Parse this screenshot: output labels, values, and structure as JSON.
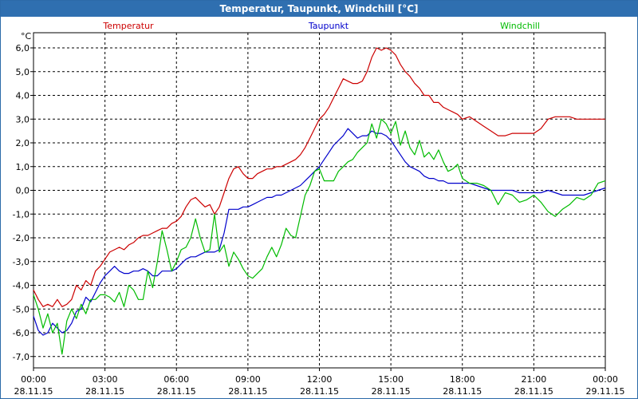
{
  "chart_data": {
    "type": "line",
    "title": "Temperatur, Taupunkt, Windchill [°C]",
    "ylabel": "°C",
    "ylim": [
      -7.5,
      6.5
    ],
    "yticks": [
      "6,0",
      "5,0",
      "4,0",
      "3,0",
      "2,0",
      "1,0",
      "0,0",
      "-1,0",
      "-2,0",
      "-3,0",
      "-4,0",
      "-5,0",
      "-6,0",
      "-7,0"
    ],
    "ytick_values": [
      6,
      5,
      4,
      3,
      2,
      1,
      0,
      -1,
      -2,
      -3,
      -4,
      -5,
      -6,
      -7
    ],
    "xlim": [
      0,
      24
    ],
    "xticks": [
      {
        "time": "00:00",
        "date": "28.11.15",
        "hour": 0
      },
      {
        "time": "03:00",
        "date": "28.11.15",
        "hour": 3
      },
      {
        "time": "06:00",
        "date": "28.11.15",
        "hour": 6
      },
      {
        "time": "09:00",
        "date": "28.11.15",
        "hour": 9
      },
      {
        "time": "12:00",
        "date": "28.11.15",
        "hour": 12
      },
      {
        "time": "15:00",
        "date": "28.11.15",
        "hour": 15
      },
      {
        "time": "18:00",
        "date": "28.11.15",
        "hour": 18
      },
      {
        "time": "21:00",
        "date": "28.11.15",
        "hour": 21
      },
      {
        "time": "00:00",
        "date": "29.11.15",
        "hour": 24
      }
    ],
    "grid": true,
    "series": [
      {
        "name": "Temperatur",
        "color": "#cc0000",
        "x": [
          0,
          0.2,
          0.4,
          0.6,
          0.8,
          1.0,
          1.2,
          1.4,
          1.6,
          1.8,
          2.0,
          2.2,
          2.4,
          2.6,
          2.8,
          3.0,
          3.2,
          3.4,
          3.6,
          3.8,
          4.0,
          4.2,
          4.4,
          4.6,
          4.8,
          5.0,
          5.2,
          5.4,
          5.6,
          5.8,
          6.0,
          6.2,
          6.4,
          6.6,
          6.8,
          7.0,
          7.2,
          7.4,
          7.6,
          7.8,
          8.0,
          8.2,
          8.4,
          8.6,
          8.8,
          9.0,
          9.2,
          9.4,
          9.6,
          9.8,
          10.0,
          10.2,
          10.4,
          10.6,
          10.8,
          11.0,
          11.2,
          11.4,
          11.6,
          11.8,
          12.0,
          12.2,
          12.4,
          12.6,
          12.8,
          13.0,
          13.2,
          13.4,
          13.6,
          13.8,
          14.0,
          14.2,
          14.4,
          14.6,
          14.8,
          15.0,
          15.2,
          15.4,
          15.6,
          15.8,
          16.0,
          16.2,
          16.4,
          16.6,
          16.8,
          17.0,
          17.2,
          17.4,
          17.6,
          17.8,
          18.0,
          18.3,
          18.6,
          18.9,
          19.2,
          19.5,
          19.8,
          20.1,
          20.4,
          20.7,
          21.0,
          21.3,
          21.6,
          21.9,
          22.2,
          22.5,
          22.8,
          23.1,
          23.4,
          23.7,
          24.0
        ],
        "values": [
          -4.2,
          -4.6,
          -4.9,
          -4.8,
          -4.9,
          -4.6,
          -4.9,
          -4.8,
          -4.6,
          -4.0,
          -4.2,
          -3.8,
          -4.0,
          -3.4,
          -3.2,
          -2.9,
          -2.6,
          -2.5,
          -2.4,
          -2.5,
          -2.3,
          -2.2,
          -2.0,
          -1.9,
          -1.9,
          -1.8,
          -1.7,
          -1.6,
          -1.6,
          -1.4,
          -1.3,
          -1.1,
          -0.7,
          -0.4,
          -0.3,
          -0.5,
          -0.7,
          -0.6,
          -1.0,
          -0.7,
          -0.1,
          0.5,
          0.9,
          1.0,
          0.7,
          0.5,
          0.5,
          0.7,
          0.8,
          0.9,
          0.9,
          1.0,
          1.0,
          1.1,
          1.2,
          1.3,
          1.5,
          1.8,
          2.2,
          2.6,
          3.0,
          3.2,
          3.5,
          3.9,
          4.3,
          4.7,
          4.6,
          4.5,
          4.5,
          4.6,
          5.0,
          5.6,
          6.0,
          5.9,
          6.0,
          5.9,
          5.7,
          5.3,
          5.0,
          4.8,
          4.5,
          4.3,
          4.0,
          4.0,
          3.7,
          3.7,
          3.5,
          3.4,
          3.3,
          3.2,
          3.0,
          3.1,
          2.9,
          2.7,
          2.5,
          2.3,
          2.3,
          2.4,
          2.4,
          2.4,
          2.4,
          2.6,
          3.0,
          3.1,
          3.1,
          3.1,
          3.0,
          3.0,
          3.0,
          3.0,
          3.0
        ]
      },
      {
        "name": "Taupunkt",
        "color": "#0000cc",
        "x": [
          0,
          0.2,
          0.4,
          0.6,
          0.8,
          1.0,
          1.2,
          1.4,
          1.6,
          1.8,
          2.0,
          2.2,
          2.4,
          2.6,
          2.8,
          3.0,
          3.2,
          3.4,
          3.6,
          3.8,
          4.0,
          4.2,
          4.4,
          4.6,
          4.8,
          5.0,
          5.2,
          5.4,
          5.6,
          5.8,
          6.0,
          6.2,
          6.4,
          6.6,
          6.8,
          7.0,
          7.2,
          7.4,
          7.6,
          7.8,
          8.0,
          8.2,
          8.4,
          8.6,
          8.8,
          9.0,
          9.2,
          9.4,
          9.6,
          9.8,
          10.0,
          10.2,
          10.4,
          10.6,
          10.8,
          11.0,
          11.2,
          11.4,
          11.6,
          11.8,
          12.0,
          12.2,
          12.4,
          12.6,
          12.8,
          13.0,
          13.2,
          13.4,
          13.6,
          13.8,
          14.0,
          14.2,
          14.4,
          14.6,
          14.8,
          15.0,
          15.2,
          15.4,
          15.6,
          15.8,
          16.0,
          16.2,
          16.4,
          16.6,
          16.8,
          17.0,
          17.2,
          17.4,
          17.6,
          17.8,
          18.0,
          18.3,
          18.6,
          18.9,
          19.2,
          19.5,
          19.8,
          20.1,
          20.4,
          20.7,
          21.0,
          21.3,
          21.6,
          21.9,
          22.2,
          22.5,
          22.8,
          23.1,
          23.4,
          23.7,
          24.0
        ],
        "values": [
          -5.3,
          -5.9,
          -6.1,
          -6.0,
          -5.6,
          -5.8,
          -6.0,
          -5.9,
          -5.6,
          -5.1,
          -5.0,
          -4.5,
          -4.7,
          -4.3,
          -3.9,
          -3.6,
          -3.4,
          -3.2,
          -3.4,
          -3.5,
          -3.5,
          -3.4,
          -3.4,
          -3.3,
          -3.4,
          -3.6,
          -3.6,
          -3.4,
          -3.4,
          -3.4,
          -3.3,
          -3.1,
          -2.9,
          -2.8,
          -2.8,
          -2.7,
          -2.6,
          -2.6,
          -2.6,
          -2.5,
          -1.8,
          -0.8,
          -0.8,
          -0.8,
          -0.7,
          -0.7,
          -0.6,
          -0.5,
          -0.4,
          -0.3,
          -0.3,
          -0.2,
          -0.2,
          -0.1,
          0.0,
          0.1,
          0.2,
          0.4,
          0.6,
          0.8,
          1.0,
          1.3,
          1.6,
          1.9,
          2.1,
          2.3,
          2.6,
          2.4,
          2.2,
          2.3,
          2.3,
          2.5,
          2.4,
          2.4,
          2.3,
          2.1,
          1.8,
          1.5,
          1.2,
          1.0,
          0.9,
          0.8,
          0.6,
          0.5,
          0.5,
          0.4,
          0.4,
          0.3,
          0.3,
          0.3,
          0.3,
          0.3,
          0.2,
          0.1,
          0.0,
          0.0,
          0.0,
          0.0,
          -0.1,
          -0.1,
          -0.1,
          -0.1,
          0.0,
          -0.1,
          -0.2,
          -0.2,
          -0.2,
          -0.2,
          -0.1,
          0.0,
          0.1
        ]
      },
      {
        "name": "Windchill",
        "color": "#00bb00",
        "x": [
          0,
          0.2,
          0.4,
          0.6,
          0.8,
          1.0,
          1.2,
          1.4,
          1.6,
          1.8,
          2.0,
          2.2,
          2.4,
          2.6,
          2.8,
          3.0,
          3.2,
          3.4,
          3.6,
          3.8,
          4.0,
          4.2,
          4.4,
          4.6,
          4.8,
          5.0,
          5.2,
          5.4,
          5.6,
          5.8,
          6.0,
          6.2,
          6.4,
          6.6,
          6.8,
          7.0,
          7.2,
          7.4,
          7.6,
          7.8,
          8.0,
          8.2,
          8.4,
          8.6,
          8.8,
          9.0,
          9.2,
          9.4,
          9.6,
          9.8,
          10.0,
          10.2,
          10.4,
          10.6,
          10.8,
          11.0,
          11.2,
          11.4,
          11.6,
          11.8,
          12.0,
          12.2,
          12.4,
          12.6,
          12.8,
          13.0,
          13.2,
          13.4,
          13.6,
          13.8,
          14.0,
          14.2,
          14.4,
          14.6,
          14.8,
          15.0,
          15.2,
          15.4,
          15.6,
          15.8,
          16.0,
          16.2,
          16.4,
          16.6,
          16.8,
          17.0,
          17.2,
          17.4,
          17.6,
          17.8,
          18.0,
          18.3,
          18.6,
          18.9,
          19.2,
          19.5,
          19.8,
          20.1,
          20.4,
          20.7,
          21.0,
          21.3,
          21.6,
          21.9,
          22.2,
          22.5,
          22.8,
          23.1,
          23.4,
          23.7,
          24.0
        ],
        "values": [
          -4.4,
          -5.0,
          -5.8,
          -5.2,
          -6.0,
          -5.6,
          -6.9,
          -5.5,
          -5.0,
          -5.4,
          -4.8,
          -5.2,
          -4.6,
          -4.6,
          -4.4,
          -4.4,
          -4.5,
          -4.7,
          -4.3,
          -4.9,
          -4.0,
          -4.2,
          -4.6,
          -4.6,
          -3.4,
          -4.1,
          -3.0,
          -1.7,
          -2.5,
          -3.4,
          -3.0,
          -2.5,
          -2.4,
          -2.0,
          -1.2,
          -2.0,
          -2.6,
          -2.5,
          -1.0,
          -2.6,
          -2.3,
          -3.2,
          -2.6,
          -2.9,
          -3.3,
          -3.6,
          -3.7,
          -3.5,
          -3.3,
          -2.8,
          -2.4,
          -2.8,
          -2.3,
          -1.6,
          -1.9,
          -2.0,
          -1.1,
          -0.2,
          0.2,
          0.8,
          0.9,
          0.4,
          0.4,
          0.4,
          0.8,
          1.0,
          1.2,
          1.3,
          1.6,
          1.8,
          2.0,
          2.8,
          2.2,
          3.0,
          2.8,
          2.4,
          2.9,
          1.9,
          2.5,
          1.8,
          1.5,
          2.1,
          1.4,
          1.6,
          1.3,
          1.7,
          1.2,
          0.8,
          0.9,
          1.1,
          0.5,
          0.3,
          0.3,
          0.2,
          0.0,
          -0.6,
          -0.1,
          -0.2,
          -0.5,
          -0.4,
          -0.2,
          -0.5,
          -0.9,
          -1.1,
          -0.8,
          -0.6,
          -0.3,
          -0.4,
          -0.2,
          0.3,
          0.4
        ]
      }
    ]
  }
}
